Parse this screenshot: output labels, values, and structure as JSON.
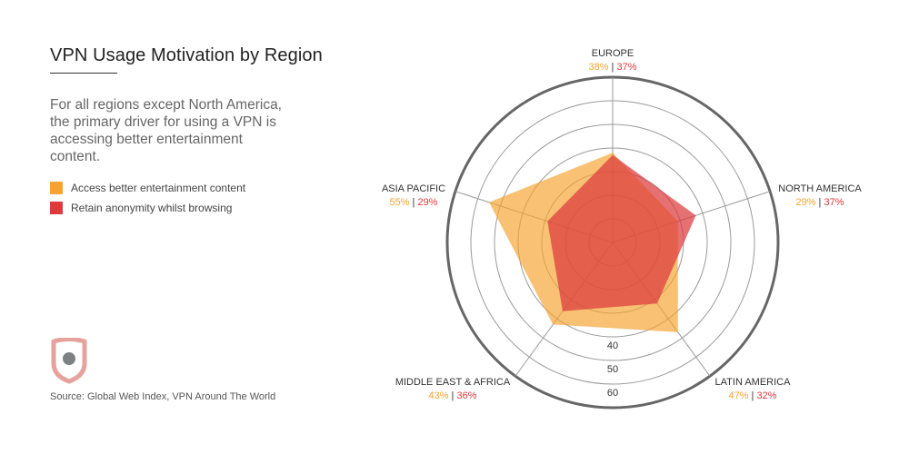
{
  "title": "VPN Usage Motivation by Region",
  "description": "For all regions except North America, the primary driver for using a VPN is accessing better entertainment content.",
  "source": "Source: Global Web Index, VPN Around The World",
  "colors": {
    "entertainment": "#f5a431",
    "anonymity": "#dc3a3d",
    "logo": "#e6a29c",
    "logo_dot": "#7e8082"
  },
  "chart_data": {
    "type": "radar",
    "axes": [
      "EUROPE",
      "NORTH AMERICA",
      "LATIN AMERICA",
      "MIDDLE EAST & AFRICA",
      "ASIA PACIFIC"
    ],
    "series": [
      {
        "name": "Access better entertainment content",
        "values": [
          38,
          29,
          47,
          43,
          55
        ]
      },
      {
        "name": "Retain anonymity whilst browsing",
        "values": [
          37,
          37,
          32,
          36,
          29
        ]
      }
    ],
    "value_labels": [
      "38% | 37%",
      "29% | 37%",
      "47% | 32%",
      "43% | 36%",
      "55% | 29%"
    ],
    "r_ticks": [
      40,
      50,
      60
    ],
    "r_range": [
      0,
      70
    ],
    "outer_ring": 70
  }
}
